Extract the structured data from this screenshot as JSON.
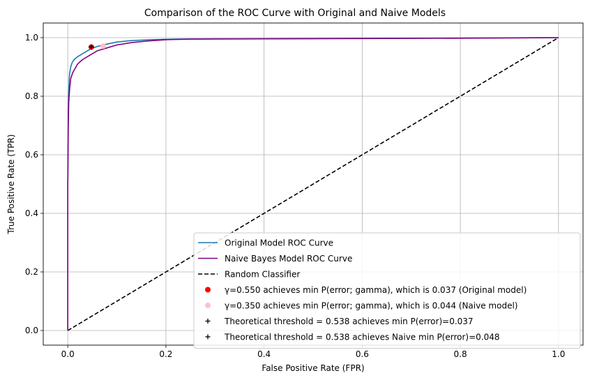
{
  "chart_data": {
    "type": "line",
    "title": "Comparison of the ROC Curve with Original and Naive Models",
    "xlabel": "False Positive Rate (FPR)",
    "ylabel": "True Positive Rate (TPR)",
    "xlim": [
      -0.05,
      1.05
    ],
    "ylim": [
      -0.05,
      1.05
    ],
    "xticks": [
      "0.0",
      "0.2",
      "0.4",
      "0.6",
      "0.8",
      "1.0"
    ],
    "yticks": [
      "0.0",
      "0.2",
      "0.4",
      "0.6",
      "0.8",
      "1.0"
    ],
    "grid": true,
    "legend_position": "lower-right",
    "series": [
      {
        "name": "Original Model ROC Curve",
        "color": "#1f77b4",
        "style": "solid",
        "x": [
          0,
          0,
          0.001,
          0.002,
          0.003,
          0.004,
          0.006,
          0.009,
          0.013,
          0.02,
          0.03,
          0.045,
          0.06,
          0.08,
          0.1,
          0.13,
          0.17,
          0.22,
          0.3,
          0.5,
          0.7,
          1.0
        ],
        "y": [
          0,
          0.5,
          0.75,
          0.82,
          0.86,
          0.88,
          0.9,
          0.915,
          0.925,
          0.935,
          0.945,
          0.96,
          0.97,
          0.978,
          0.985,
          0.99,
          0.993,
          0.995,
          0.996,
          0.997,
          0.998,
          1.0
        ]
      },
      {
        "name": "Naive Bayes Model ROC Curve",
        "color": "#800080",
        "style": "solid",
        "x": [
          0,
          0,
          0.001,
          0.002,
          0.004,
          0.006,
          0.01,
          0.015,
          0.02,
          0.03,
          0.045,
          0.06,
          0.08,
          0.1,
          0.13,
          0.16,
          0.2,
          0.25,
          0.4,
          0.6,
          0.8,
          1.0
        ],
        "y": [
          0,
          0.5,
          0.7,
          0.78,
          0.83,
          0.86,
          0.88,
          0.895,
          0.91,
          0.925,
          0.94,
          0.955,
          0.965,
          0.975,
          0.983,
          0.988,
          0.993,
          0.995,
          0.996,
          0.997,
          0.998,
          1.0
        ]
      },
      {
        "name": "Random Classifier",
        "color": "#000000",
        "style": "dashed",
        "x": [
          0,
          1
        ],
        "y": [
          0,
          1
        ]
      }
    ],
    "points": [
      {
        "label": "γ=0.550 achieves min P(error; gamma), which is 0.037 (Original model)",
        "marker": "circle",
        "color": "#ff0000",
        "x": 0.048,
        "y": 0.968
      },
      {
        "label": "γ=0.350 achieves min P(error; gamma), which is 0.044 (Naive model)",
        "marker": "circle",
        "color": "#ffc0cb",
        "x": 0.072,
        "y": 0.971
      },
      {
        "label": "Theoretical threshold = 0.538 achieves min P(error)=0.037",
        "marker": "plus",
        "color": "#000000",
        "x": 0.048,
        "y": 0.968
      },
      {
        "label": "Theoretical threshold = 0.538 achieves Naive min P(error)=0.048",
        "marker": "plus",
        "color": "#000000",
        "x": 0.048,
        "y": 0.968
      }
    ]
  }
}
